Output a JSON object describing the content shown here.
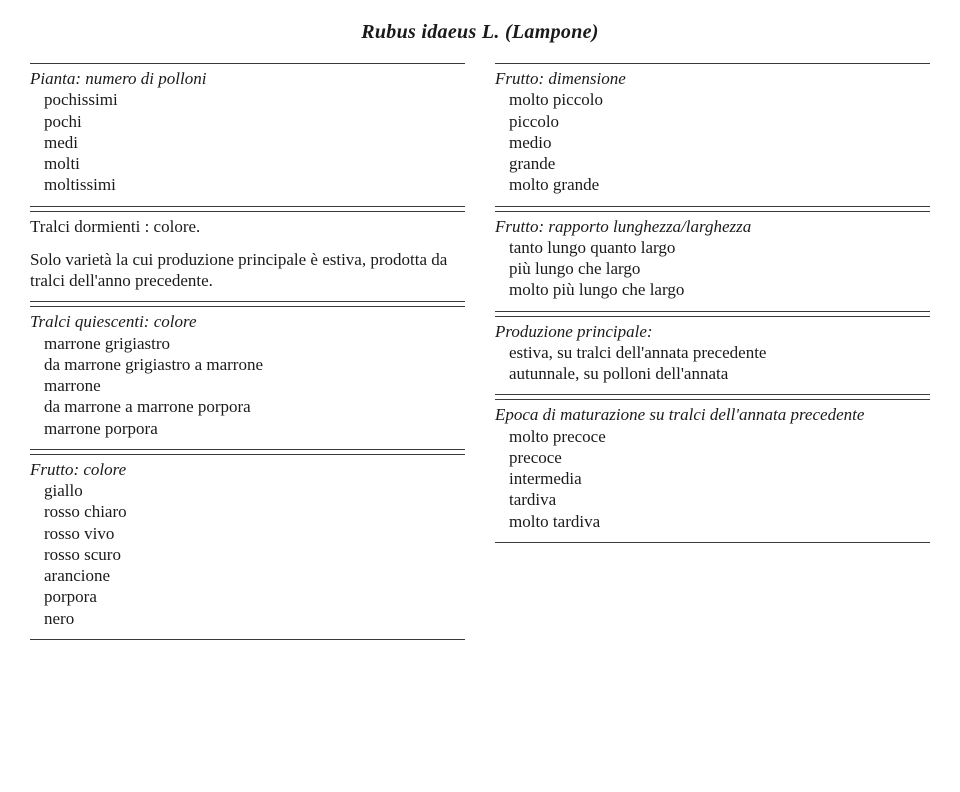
{
  "title": "Rubus idaeus L. (Lampone)",
  "left": {
    "s1": {
      "head": "Pianta: numero di polloni",
      "items": [
        "pochissimi",
        "pochi",
        "medi",
        "molti",
        "moltissimi"
      ]
    },
    "s2": {
      "line1": "Tralci dormienti : colore.",
      "line2": "Solo varietà la cui produzione principale è estiva, prodotta da tralci dell'anno precedente."
    },
    "s3": {
      "head": "Tralci quiescenti: colore",
      "items": [
        "marrone grigiastro",
        "da marrone grigiastro a marrone",
        "marrone",
        "da marrone a marrone porpora",
        "marrone porpora"
      ]
    },
    "s4": {
      "head": "Frutto: colore",
      "items": [
        "giallo",
        "rosso chiaro",
        "rosso vivo",
        "rosso scuro",
        "arancione",
        "porpora",
        "nero"
      ]
    }
  },
  "right": {
    "s1": {
      "head": "Frutto: dimensione",
      "items": [
        "molto piccolo",
        "piccolo",
        "medio",
        "grande",
        "molto grande"
      ]
    },
    "s2": {
      "head": "Frutto: rapporto lunghezza/larghezza",
      "items": [
        "tanto lungo quanto largo",
        "più lungo che largo",
        "molto più lungo che largo"
      ]
    },
    "s3": {
      "head": "Produzione principale:",
      "items": [
        "estiva, su tralci dell'annata precedente",
        "autunnale, su polloni dell'annata"
      ]
    },
    "s4": {
      "head": "Epoca di maturazione su tralci dell'annata precedente",
      "items": [
        "molto precoce",
        "precoce",
        "intermedia",
        "tardiva",
        "molto tardiva"
      ]
    }
  }
}
